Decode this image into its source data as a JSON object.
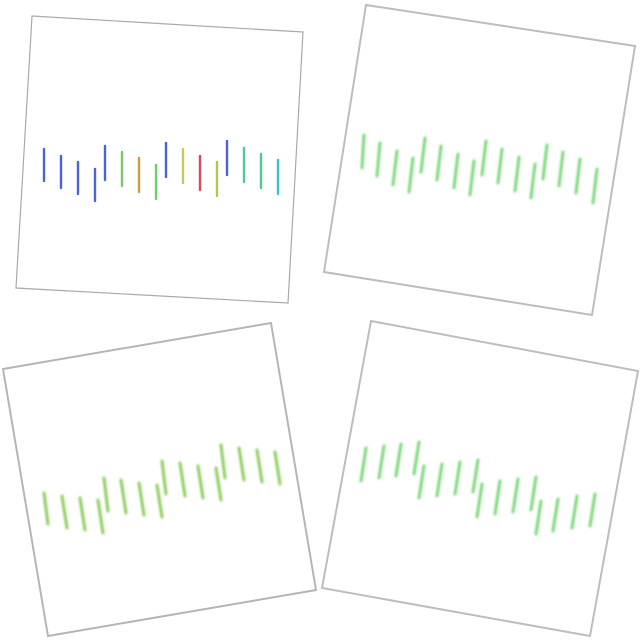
{
  "panels": [
    {
      "name": "panel-top-left",
      "sharp": true,
      "frame_color": "#a9a9a9",
      "strokes": [
        {
          "color": "#4b63d6"
        },
        {
          "color": "#4b63d6"
        },
        {
          "color": "#4b63d6"
        },
        {
          "color": "#4b63d6"
        },
        {
          "color": "#4b63d6"
        },
        {
          "color": "#7cc86a"
        },
        {
          "color": "#c8a040"
        },
        {
          "color": "#6fd06a"
        },
        {
          "color": "#4b63d6"
        },
        {
          "color": "#c8c860"
        },
        {
          "color": "#d64a5a"
        },
        {
          "color": "#b0c850"
        },
        {
          "color": "#4b63d6"
        },
        {
          "color": "#50c8a0"
        },
        {
          "color": "#50c890"
        },
        {
          "color": "#40c0c8"
        }
      ]
    },
    {
      "name": "panel-top-right",
      "sharp": false,
      "frame_color": "#bdbdbd",
      "stroke_color": "#7ad67a"
    },
    {
      "name": "panel-bottom-left",
      "sharp": false,
      "frame_color": "#b5b5b5",
      "stroke_color": "#8ccc5a"
    },
    {
      "name": "panel-bottom-right",
      "sharp": false,
      "frame_color": "#bdbdbd",
      "stroke_color": "#7ad67a"
    }
  ]
}
